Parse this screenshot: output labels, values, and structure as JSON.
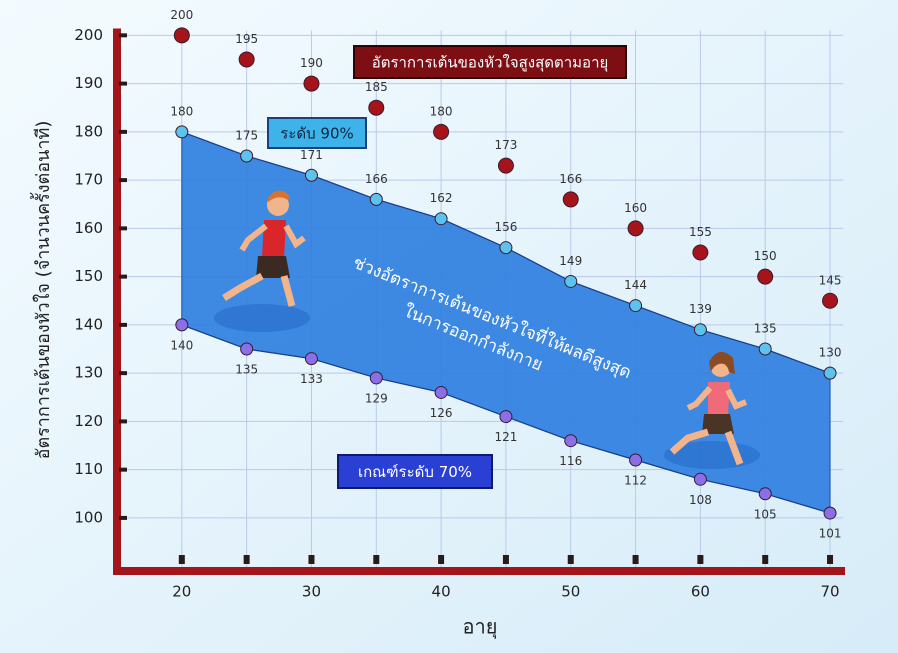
{
  "chart_data": {
    "type": "line",
    "xlabel": "อายุ",
    "ylabel": "อัตราการเต้นของหัวใจ (จำนวนครั้งต่อนาที)",
    "x": [
      20,
      25,
      30,
      35,
      40,
      45,
      50,
      55,
      60,
      65,
      70
    ],
    "series": [
      {
        "name": "อัตราการเต้นของหัวใจสูงสุดตามอายุ",
        "color": "#a5141b",
        "style": "markers",
        "values": [
          200,
          195,
          190,
          185,
          180,
          173,
          166,
          160,
          155,
          150,
          145
        ]
      },
      {
        "name": "ระดับ 90%",
        "color": "#5cc3ef",
        "style": "line",
        "values": [
          180,
          175,
          171,
          166,
          162,
          156,
          149,
          144,
          139,
          135,
          130
        ]
      },
      {
        "name": "เกณฑ์ระดับ 70%",
        "color": "#8b6fe6",
        "style": "line",
        "values": [
          140,
          135,
          133,
          129,
          126,
          121,
          116,
          112,
          108,
          105,
          101
        ]
      }
    ],
    "band_color": "#2f7fe0",
    "annotations": [
      "ช่วงอัตราการเต้นของหัวใจที่ให้ผลดีสูงสุด",
      "ในการออกกำลังกาย"
    ],
    "xlim": [
      15,
      71
    ],
    "xticks": [
      20,
      30,
      40,
      50,
      60,
      70
    ],
    "ylim": [
      89,
      201
    ],
    "yticks": [
      100,
      110,
      120,
      130,
      140,
      150,
      160,
      170,
      180,
      190,
      200
    ],
    "grid": true
  }
}
